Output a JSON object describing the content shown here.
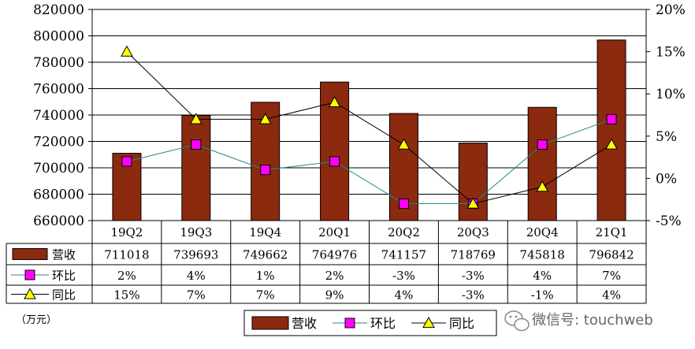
{
  "chart_data": {
    "type": "bar",
    "categories": [
      "19Q2",
      "19Q3",
      "19Q4",
      "20Q1",
      "20Q2",
      "20Q3",
      "20Q4",
      "21Q1"
    ],
    "series": [
      {
        "name": "营收",
        "type": "bar",
        "axis": "left",
        "values": [
          711018,
          739693,
          749662,
          764976,
          741157,
          718769,
          745818,
          796842
        ],
        "labels": [
          "711018",
          "739693",
          "749662",
          "764976",
          "741157",
          "718769",
          "745818",
          "796842"
        ],
        "color": "#8b2a0f"
      },
      {
        "name": "环比",
        "type": "line",
        "axis": "right",
        "values": [
          2,
          4,
          1,
          2,
          -3,
          -3,
          4,
          7
        ],
        "labels": [
          "2%",
          "4%",
          "1%",
          "2%",
          "-3%",
          "-3%",
          "4%",
          "7%"
        ],
        "color": "#1f8a8a",
        "marker": "square",
        "marker_color": "#ff00ff"
      },
      {
        "name": "同比",
        "type": "line",
        "axis": "right",
        "values": [
          15,
          7,
          7,
          9,
          4,
          -3,
          -1,
          4
        ],
        "labels": [
          "15%",
          "7%",
          "7%",
          "9%",
          "4%",
          "-3%",
          "-1%",
          "4%"
        ],
        "color": "#000000",
        "marker": "triangle",
        "marker_color": "#ffff00"
      }
    ],
    "ylim": [
      660000,
      820000
    ],
    "yticks": [
      "660000",
      "680000",
      "700000",
      "720000",
      "740000",
      "760000",
      "780000",
      "800000",
      "820000"
    ],
    "y2lim": [
      -5,
      20
    ],
    "y2ticks": [
      "-5%",
      "0%",
      "5%",
      "10%",
      "15%",
      "20%"
    ],
    "grid": "horizontal",
    "unit_label": "（万元）",
    "legend_position": "bottom"
  },
  "watermark": "微信号: touchweb"
}
